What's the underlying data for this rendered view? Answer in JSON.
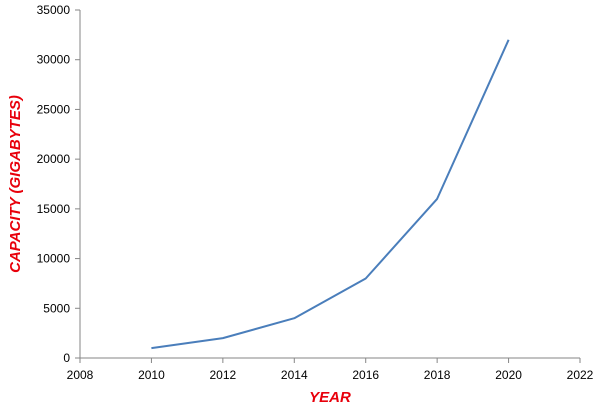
{
  "chart_data": {
    "type": "line",
    "title": "",
    "xlabel": "YEAR",
    "ylabel": "CAPACITY (GIGABYTES)",
    "xlim": [
      2008,
      2022
    ],
    "ylim": [
      0,
      35000
    ],
    "x_ticks": [
      2008,
      2010,
      2012,
      2014,
      2016,
      2018,
      2020,
      2022
    ],
    "y_ticks": [
      0,
      5000,
      10000,
      15000,
      20000,
      25000,
      30000,
      35000
    ],
    "grid": false,
    "legend": "none",
    "series": [
      {
        "color": "#4a7ebb",
        "x": [
          2010,
          2012,
          2014,
          2016,
          2018,
          2020
        ],
        "y": [
          1000,
          2000,
          4000,
          8000,
          16000,
          32000
        ]
      }
    ],
    "axis_title_color": "#e8000b"
  }
}
